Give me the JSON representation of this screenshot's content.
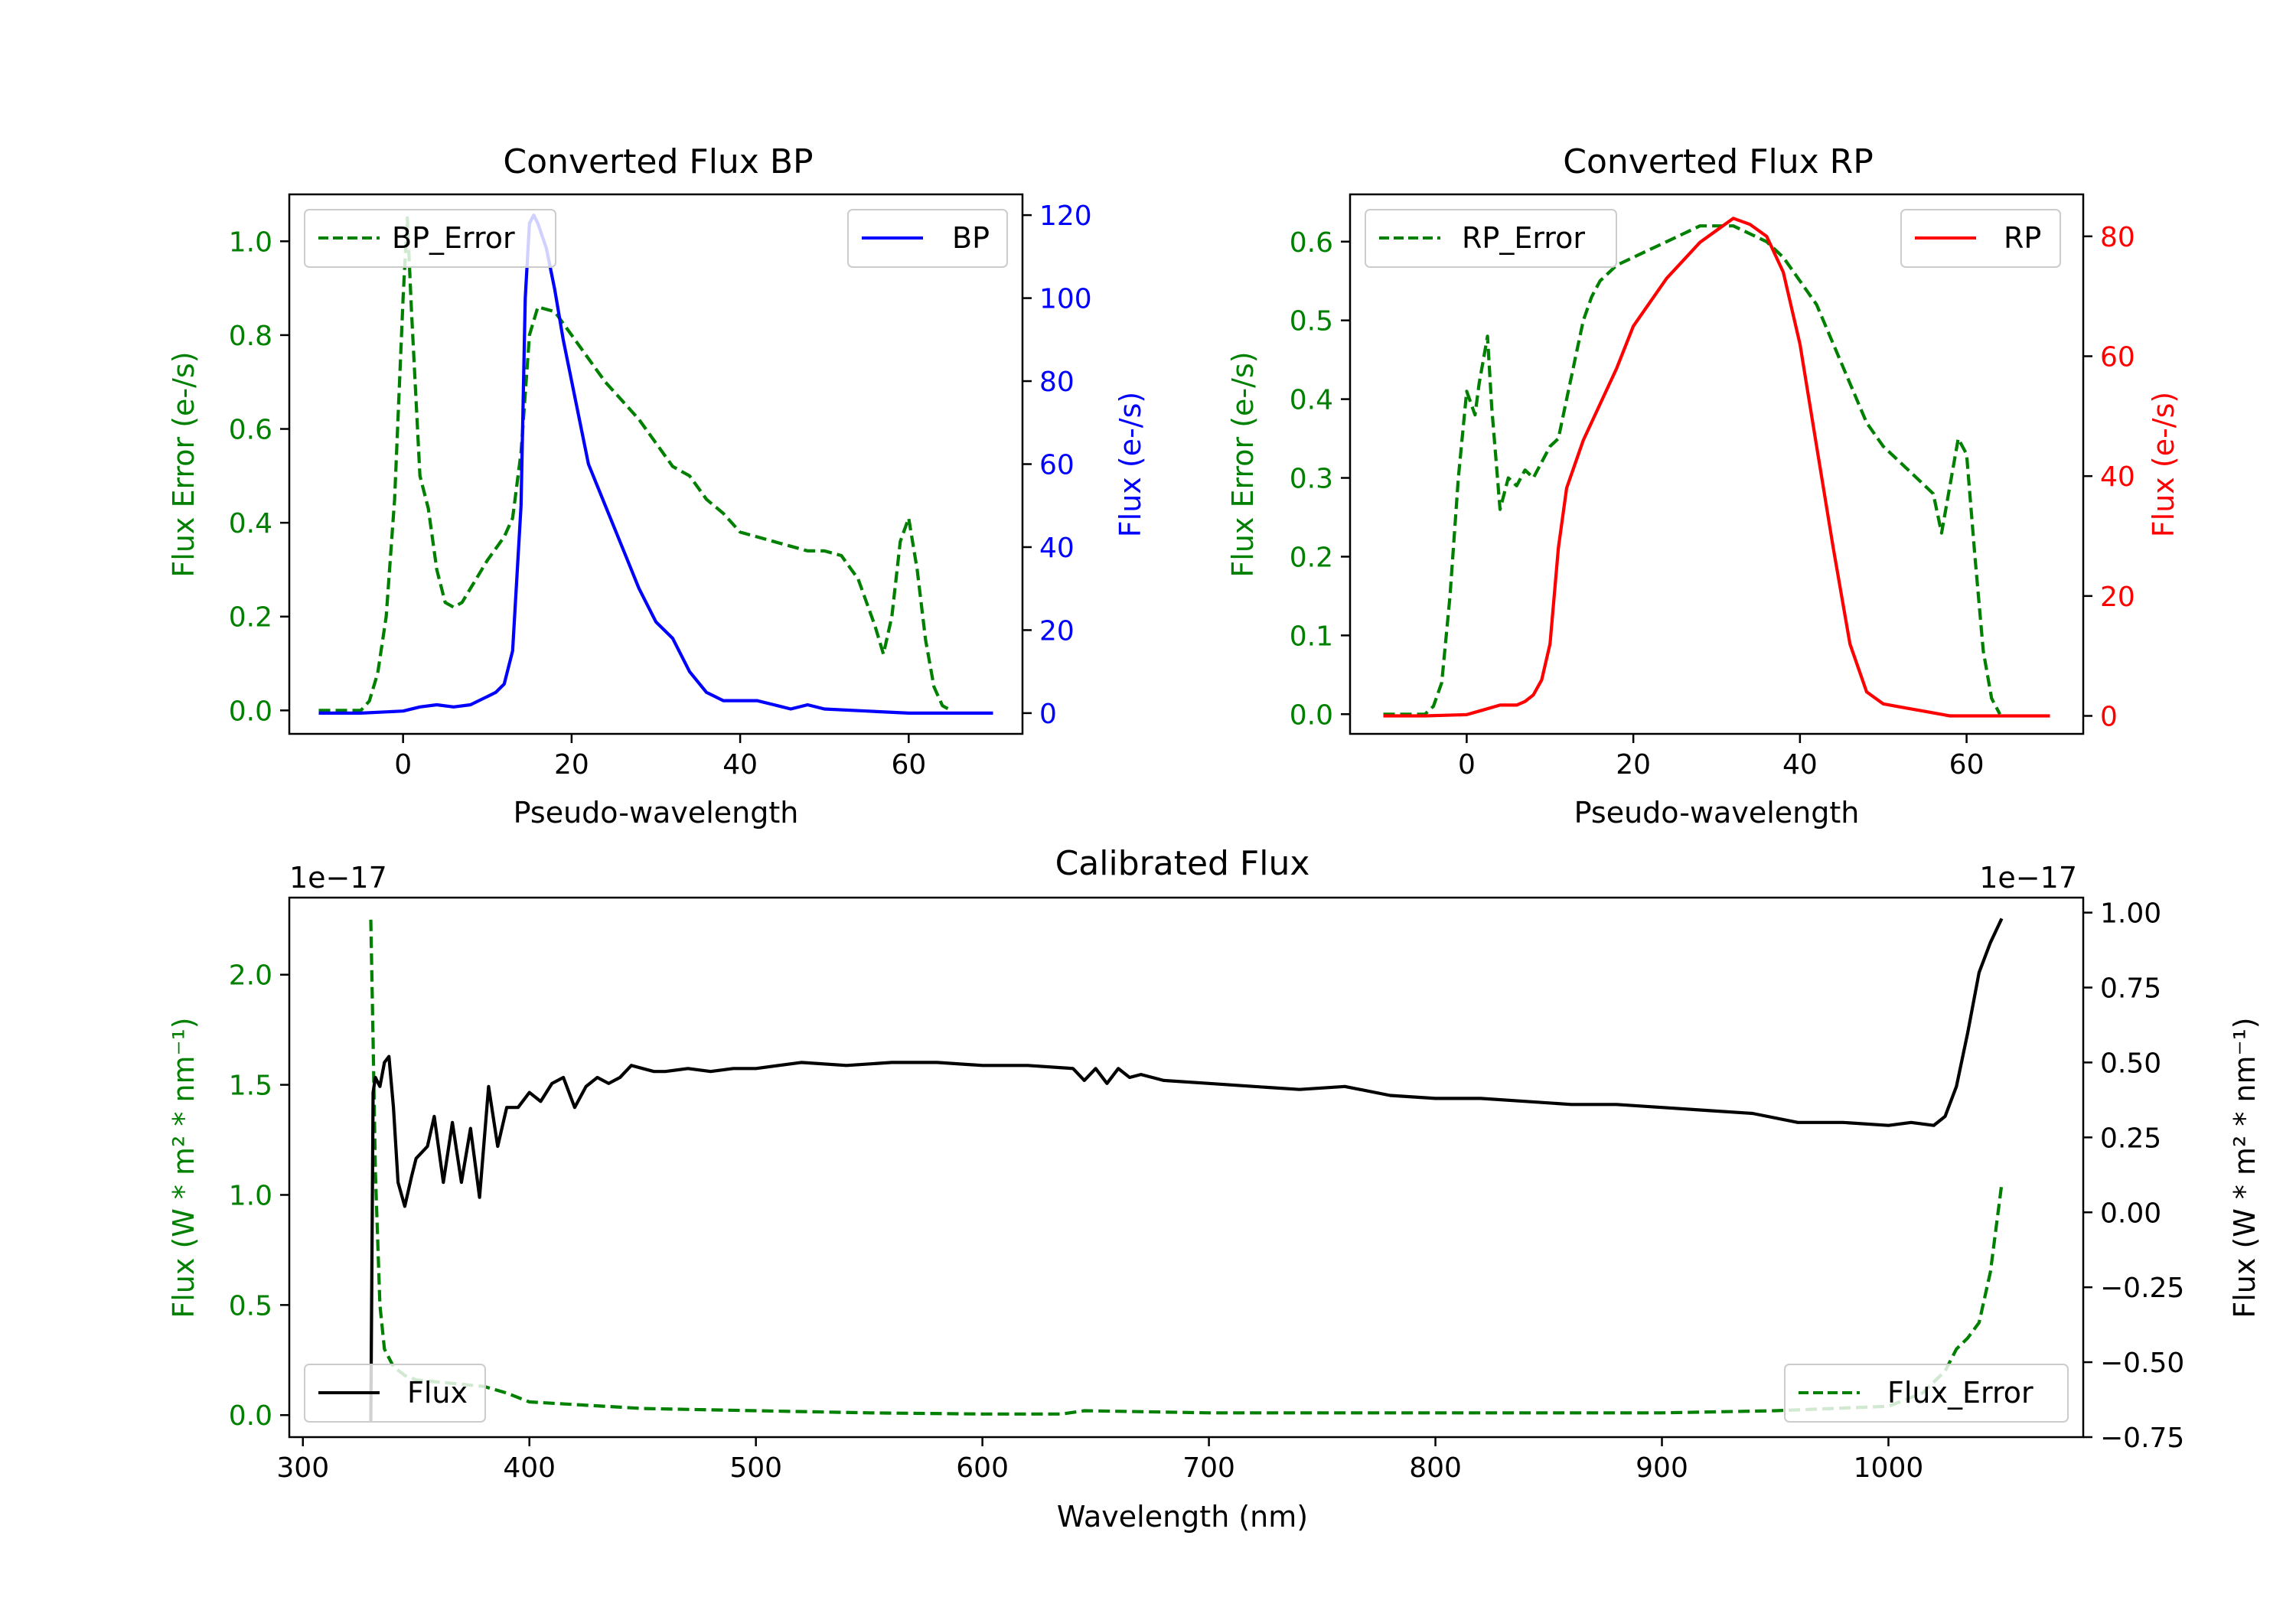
{
  "figure": {
    "background": "#ffffff"
  },
  "chart_data": [
    {
      "id": "bp",
      "type": "line",
      "title": "Converted Flux BP",
      "xlabel": "Pseudo-wavelength",
      "ylabel_left": "Flux Error (e-/s)",
      "ylabel_right": "Flux (e-/s)",
      "xlim": [
        -13.5,
        73.5
      ],
      "ylim_left": [
        -0.05,
        1.1
      ],
      "ylim_right": [
        -5,
        125
      ],
      "xticks": [
        0,
        20,
        40,
        60
      ],
      "yticks_left": [
        0.0,
        0.2,
        0.4,
        0.6,
        0.8,
        1.0
      ],
      "yticks_right": [
        0,
        20,
        40,
        60,
        80,
        100,
        120
      ],
      "left_tick_color": "#008000",
      "right_tick_color": "#0000ff",
      "series": [
        {
          "name": "BP_Error",
          "axis": "left",
          "color": "#008000",
          "style": "dashed",
          "legend": "top-left",
          "x": [
            -10,
            -5,
            -4,
            -3,
            -2,
            -1,
            0,
            0.5,
            1,
            2,
            3,
            4,
            5,
            6,
            7,
            8,
            10,
            12,
            13,
            14,
            15,
            16,
            18,
            20,
            22,
            24,
            26,
            28,
            30,
            32,
            34,
            36,
            38,
            40,
            42,
            44,
            46,
            48,
            50,
            52,
            54,
            56,
            57,
            58,
            59,
            60,
            61,
            62,
            63,
            64,
            65
          ],
          "y": [
            0,
            0,
            0.02,
            0.08,
            0.2,
            0.45,
            0.88,
            1.05,
            0.85,
            0.5,
            0.43,
            0.3,
            0.23,
            0.22,
            0.23,
            0.26,
            0.32,
            0.37,
            0.41,
            0.55,
            0.8,
            0.86,
            0.85,
            0.8,
            0.75,
            0.7,
            0.66,
            0.62,
            0.57,
            0.52,
            0.5,
            0.45,
            0.42,
            0.38,
            0.37,
            0.36,
            0.35,
            0.34,
            0.34,
            0.33,
            0.28,
            0.18,
            0.12,
            0.2,
            0.36,
            0.41,
            0.3,
            0.15,
            0.05,
            0.01,
            0
          ]
        },
        {
          "name": "BP",
          "axis": "right",
          "color": "#0000ff",
          "style": "solid",
          "legend": "top-right",
          "x": [
            -10,
            -5,
            0,
            2,
            4,
            6,
            8,
            10,
            11,
            12,
            13,
            14,
            14.5,
            15,
            15.5,
            16,
            17,
            18,
            19,
            20,
            22,
            24,
            26,
            28,
            30,
            32,
            34,
            36,
            38,
            40,
            42,
            44,
            46,
            48,
            50,
            55,
            60,
            65,
            70
          ],
          "y": [
            0,
            0,
            0.5,
            1.5,
            2,
            1.5,
            2,
            4,
            5,
            7,
            15,
            50,
            100,
            118,
            120,
            118,
            112,
            102,
            90,
            80,
            60,
            50,
            40,
            30,
            22,
            18,
            10,
            5,
            3,
            3,
            3,
            2,
            1,
            2,
            1,
            0.5,
            0,
            0,
            0
          ]
        }
      ]
    },
    {
      "id": "rp",
      "type": "line",
      "title": "Converted Flux RP",
      "xlabel": "Pseudo-wavelength",
      "ylabel_left": "Flux Error (e-/s)",
      "ylabel_right": "Flux (e-/s)",
      "xlim": [
        -14,
        74
      ],
      "ylim_left": [
        -0.025,
        0.66
      ],
      "ylim_right": [
        -3,
        87
      ],
      "xticks": [
        0,
        20,
        40,
        60
      ],
      "yticks_left": [
        0.0,
        0.1,
        0.2,
        0.3,
        0.4,
        0.5,
        0.6
      ],
      "yticks_right": [
        0,
        20,
        40,
        60,
        80
      ],
      "left_tick_color": "#008000",
      "right_tick_color": "#ff0000",
      "series": [
        {
          "name": "RP_Error",
          "axis": "left",
          "color": "#008000",
          "style": "dashed",
          "legend": "top-left",
          "x": [
            -10,
            -5,
            -4,
            -3,
            -2,
            -1,
            0,
            1,
            1.5,
            2,
            2.5,
            3,
            4,
            5,
            6,
            7,
            8,
            9,
            10,
            11,
            12,
            13,
            14,
            15,
            16,
            18,
            20,
            22,
            24,
            26,
            28,
            30,
            32,
            34,
            36,
            38,
            40,
            42,
            44,
            46,
            48,
            50,
            52,
            54,
            56,
            57,
            58,
            59,
            60,
            61,
            62,
            63,
            64
          ],
          "y": [
            0,
            0,
            0.01,
            0.04,
            0.15,
            0.3,
            0.41,
            0.38,
            0.42,
            0.45,
            0.48,
            0.39,
            0.26,
            0.3,
            0.29,
            0.31,
            0.3,
            0.32,
            0.34,
            0.35,
            0.4,
            0.45,
            0.5,
            0.53,
            0.55,
            0.57,
            0.58,
            0.59,
            0.6,
            0.61,
            0.62,
            0.62,
            0.62,
            0.61,
            0.6,
            0.58,
            0.55,
            0.52,
            0.47,
            0.42,
            0.37,
            0.34,
            0.32,
            0.3,
            0.28,
            0.23,
            0.29,
            0.35,
            0.33,
            0.2,
            0.08,
            0.02,
            0
          ]
        },
        {
          "name": "RP",
          "axis": "right",
          "color": "#ff0000",
          "style": "solid",
          "legend": "top-right",
          "x": [
            -10,
            -5,
            0,
            2,
            4,
            6,
            7,
            8,
            9,
            10,
            11,
            12,
            13,
            14,
            15,
            16,
            18,
            20,
            22,
            24,
            26,
            28,
            30,
            32,
            33,
            34,
            36,
            38,
            40,
            42,
            44,
            46,
            48,
            50,
            52,
            54,
            56,
            58,
            60,
            65,
            70
          ],
          "y": [
            0,
            0,
            0.2,
            1,
            1.8,
            1.8,
            2.4,
            3.5,
            6,
            12,
            28,
            38,
            42,
            46,
            49,
            52,
            58,
            65,
            69,
            73,
            76,
            79,
            81,
            83,
            82.5,
            82,
            80,
            74,
            62,
            45,
            28,
            12,
            4,
            2,
            1.5,
            1,
            0.5,
            0,
            0,
            0,
            0
          ]
        }
      ]
    },
    {
      "id": "calibrated",
      "type": "line",
      "title": "Calibrated Flux",
      "xlabel": "Wavelength (nm)",
      "ylabel_left": "Flux (W * m² * nm⁻¹)",
      "ylabel_right": "Flux (W * m² * nm⁻¹)",
      "offset_left": "1e−17",
      "offset_right": "1e−17",
      "xlim": [
        294,
        1086
      ],
      "ylim_left": [
        -0.1,
        2.35
      ],
      "ylim_right": [
        -0.75,
        1.05
      ],
      "xticks": [
        300,
        400,
        500,
        600,
        700,
        800,
        900,
        1000
      ],
      "yticks_left": [
        0.0,
        0.5,
        1.0,
        1.5,
        2.0
      ],
      "yticks_right": [
        -0.75,
        -0.5,
        -0.25,
        0.0,
        0.25,
        0.5,
        0.75,
        1.0
      ],
      "yticks_right_labels": [
        "−0.75",
        "−0.50",
        "−0.25",
        "0.00",
        "0.25",
        "0.50",
        "0.75",
        "1.00"
      ],
      "left_tick_color": "#008000",
      "right_tick_color": "#000000",
      "series": [
        {
          "name": "Flux_Error",
          "axis": "left",
          "color": "#008000",
          "style": "dashed",
          "legend": "bottom-right",
          "x": [
            330,
            331,
            332,
            334,
            336,
            340,
            345,
            350,
            360,
            370,
            380,
            390,
            400,
            450,
            500,
            550,
            600,
            635,
            645,
            700,
            800,
            900,
            950,
            1000,
            1015,
            1025,
            1030,
            1035,
            1040,
            1045,
            1050
          ],
          "y": [
            2.25,
            1.7,
            1.1,
            0.5,
            0.3,
            0.22,
            0.18,
            0.16,
            0.15,
            0.14,
            0.13,
            0.1,
            0.06,
            0.03,
            0.02,
            0.01,
            0.005,
            0.005,
            0.02,
            0.01,
            0.01,
            0.01,
            0.02,
            0.04,
            0.1,
            0.2,
            0.3,
            0.35,
            0.42,
            0.65,
            1.05
          ]
        },
        {
          "name": "Flux",
          "axis": "right",
          "color": "#000000",
          "style": "solid",
          "legend": "bottom-left",
          "x": [
            330,
            331,
            332,
            334,
            336,
            338,
            340,
            342,
            345,
            348,
            350,
            355,
            358,
            362,
            366,
            370,
            374,
            378,
            382,
            386,
            390,
            395,
            400,
            405,
            410,
            415,
            420,
            425,
            430,
            435,
            440,
            445,
            450,
            455,
            460,
            470,
            480,
            490,
            500,
            520,
            540,
            560,
            580,
            600,
            620,
            640,
            645,
            650,
            655,
            660,
            665,
            670,
            680,
            700,
            720,
            740,
            760,
            780,
            800,
            820,
            840,
            860,
            880,
            900,
            920,
            940,
            960,
            980,
            1000,
            1010,
            1020,
            1025,
            1030,
            1035,
            1040,
            1045,
            1050
          ],
          "y": [
            -0.7,
            0.4,
            0.45,
            0.42,
            0.5,
            0.52,
            0.35,
            0.1,
            0.02,
            0.12,
            0.18,
            0.22,
            0.32,
            0.1,
            0.3,
            0.1,
            0.28,
            0.05,
            0.42,
            0.22,
            0.35,
            0.35,
            0.4,
            0.37,
            0.43,
            0.45,
            0.35,
            0.42,
            0.45,
            0.43,
            0.45,
            0.49,
            0.48,
            0.47,
            0.47,
            0.48,
            0.47,
            0.48,
            0.48,
            0.5,
            0.49,
            0.5,
            0.5,
            0.49,
            0.49,
            0.48,
            0.44,
            0.48,
            0.43,
            0.48,
            0.45,
            0.46,
            0.44,
            0.43,
            0.42,
            0.41,
            0.42,
            0.39,
            0.38,
            0.38,
            0.37,
            0.36,
            0.36,
            0.35,
            0.34,
            0.33,
            0.3,
            0.3,
            0.29,
            0.3,
            0.29,
            0.32,
            0.42,
            0.6,
            0.8,
            0.9,
            0.98
          ]
        }
      ]
    }
  ]
}
